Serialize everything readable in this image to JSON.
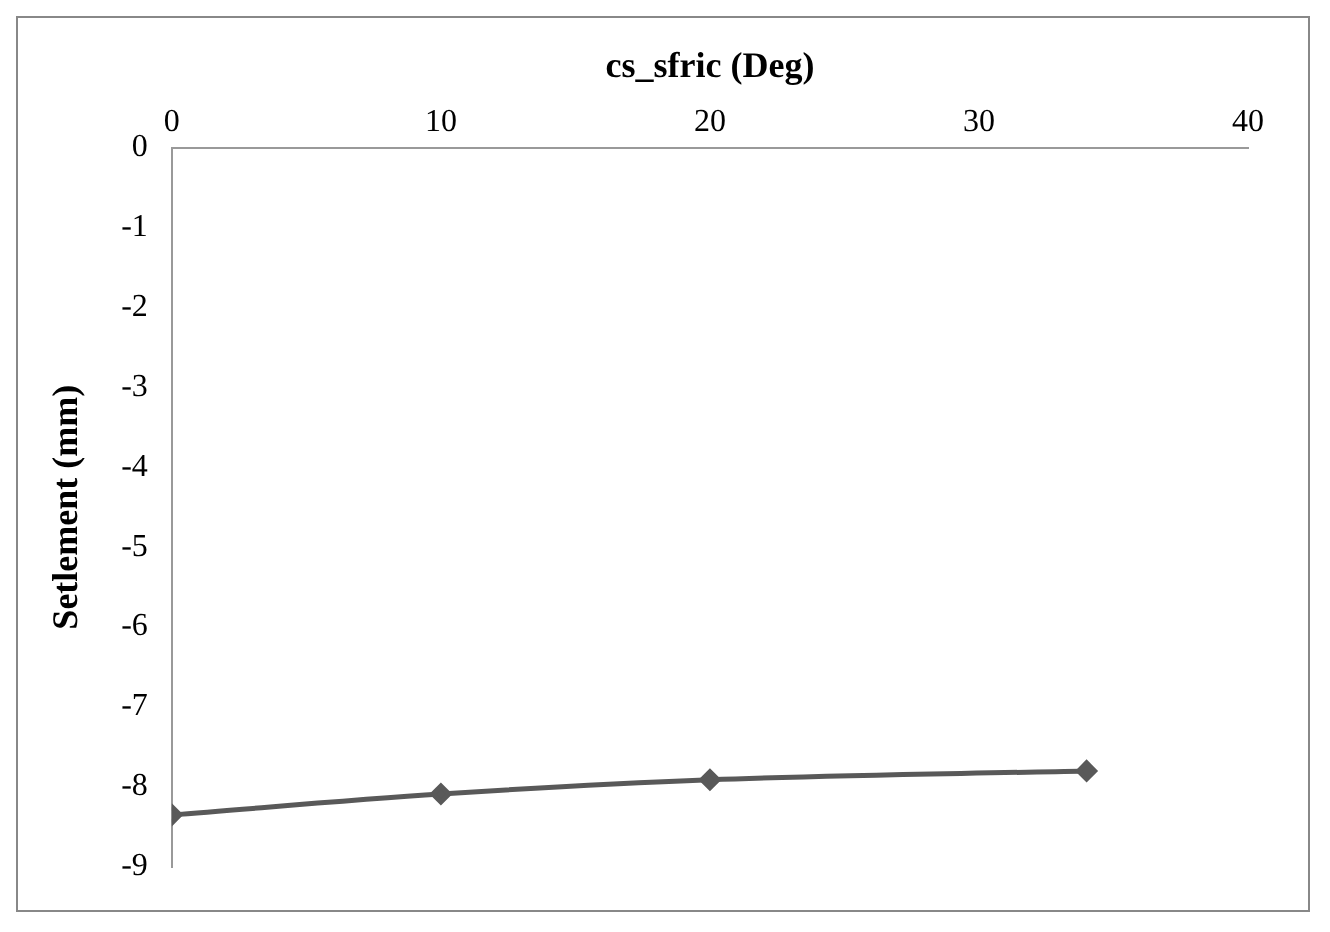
{
  "chart_data": {
    "type": "line",
    "xlabel": "cs_sfric (Deg)",
    "ylabel": "Setlement (mm)",
    "x": [
      0,
      10,
      20,
      34
    ],
    "series": [
      {
        "color": "#595959",
        "values": [
          -8.35,
          -8.09,
          -7.91,
          -7.8
        ]
      }
    ],
    "xlim": [
      0,
      40
    ],
    "xticks": [
      0,
      10,
      20,
      30,
      40
    ],
    "ylim": [
      -9,
      0
    ],
    "yticks": [
      0,
      -1,
      -2,
      -3,
      -4,
      -5,
      -6,
      -7,
      -8,
      -9
    ],
    "grid": false,
    "legend": false,
    "marker": "diamond",
    "line_style": "solid"
  }
}
